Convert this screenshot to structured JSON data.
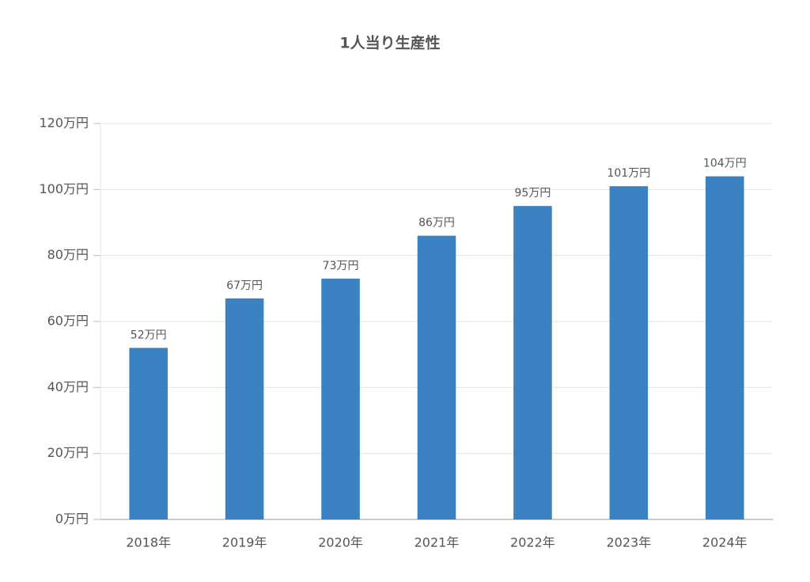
{
  "chart_data": {
    "type": "bar",
    "title": "1人当り生産性",
    "categories": [
      "2018年",
      "2019年",
      "2020年",
      "2021年",
      "2022年",
      "2023年",
      "2024年"
    ],
    "values": [
      52,
      67,
      73,
      86,
      95,
      101,
      104
    ],
    "value_labels": [
      "52万円",
      "67万円",
      "73万円",
      "86万円",
      "95万円",
      "101万円",
      "104万円"
    ],
    "color": "#3b82c2",
    "ylim": [
      0,
      120
    ],
    "yticks": [
      {
        "value": 0,
        "label": "0万円"
      },
      {
        "value": 20,
        "label": "20万円"
      },
      {
        "value": 40,
        "label": "40万円"
      },
      {
        "value": 60,
        "label": "60万円"
      },
      {
        "value": 80,
        "label": "80万円"
      },
      {
        "value": 100,
        "label": "100万円"
      },
      {
        "value": 120,
        "label": "120万円"
      }
    ],
    "grid": true
  }
}
